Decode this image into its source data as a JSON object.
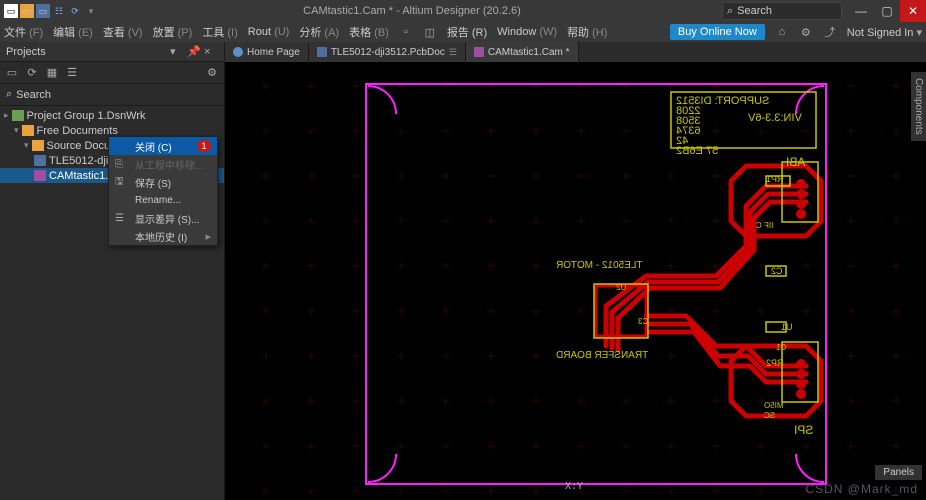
{
  "titlebar": {
    "title": "CAMtastic1.Cam * - Altium Designer (20.2.6)",
    "search_placeholder": "Search"
  },
  "menubar": {
    "items": [
      "文件",
      "编辑",
      "查看",
      "放置",
      "工具",
      "Rout",
      "分析",
      "表格",
      "Window",
      "帮助"
    ],
    "shortcuts": [
      "(F)",
      "(E)",
      "(V)",
      "(P)",
      "(I)",
      "(U)",
      "(A)",
      "(B)",
      "(W)",
      "(H)"
    ],
    "buy": "Buy Online Now",
    "not_signed": "Not Signed In"
  },
  "projects_panel": {
    "title": "Projects",
    "search_placeholder": "Search",
    "tree": {
      "group": "Project Group 1.DsnWrk",
      "free": "Free Documents",
      "src": "Source Documents",
      "pcb": "TLE5012-dji3512.PcbDoc",
      "cam": "CAMtastic1.Cam *"
    }
  },
  "context_menu": {
    "items": [
      {
        "icon": "",
        "label": "关闭 (C)",
        "badge": "1",
        "sel": true
      },
      {
        "icon": "⎘",
        "label": "从工程中移除...",
        "dis": true
      },
      {
        "icon": "🖫",
        "label": "保存 (S)"
      },
      {
        "icon": "",
        "label": "Rename..."
      },
      {
        "icon": "☰",
        "label": "显示差异 (S)..."
      },
      {
        "icon": "",
        "label": "本地历史 (I)",
        "arrow": true
      }
    ]
  },
  "tabs": [
    {
      "icon": "home",
      "label": "Home Page"
    },
    {
      "icon": "pcb",
      "label": "TLE5012-dji3512.PcbDoc"
    },
    {
      "icon": "cam",
      "label": "CAMtastic1.Cam *",
      "active": true
    }
  ],
  "canvas": {
    "xy_label": "X:Y",
    "side_panel": "Components",
    "panels_btn": "Panels",
    "watermark": "CSDN @Mark_md",
    "outline_color": "#ff1fff",
    "silk_color": "#c8c800",
    "copper_color": "#cc0000",
    "pad_color": "#880000",
    "labels": {
      "support": "SUPPORT: DI3512",
      "l2": "2208",
      "l3": "3508",
      "l4": "6374",
      "l5": "42",
      "l6": "57 E6B2",
      "vin": "VIN:3.3-6V",
      "abi": "ABI",
      "rp1": "RP1",
      "iifc": "IIF C",
      "c2": "C2",
      "u1": "U1",
      "c1": "C1",
      "rp2": "RP2",
      "miso": "MI5O",
      "sc": "SC",
      "spi": "SPI",
      "u2": "U2",
      "c3": "C3",
      "motor": "TLE5012 - MOTOR",
      "transfer": "TRANSFER BOARD"
    }
  }
}
